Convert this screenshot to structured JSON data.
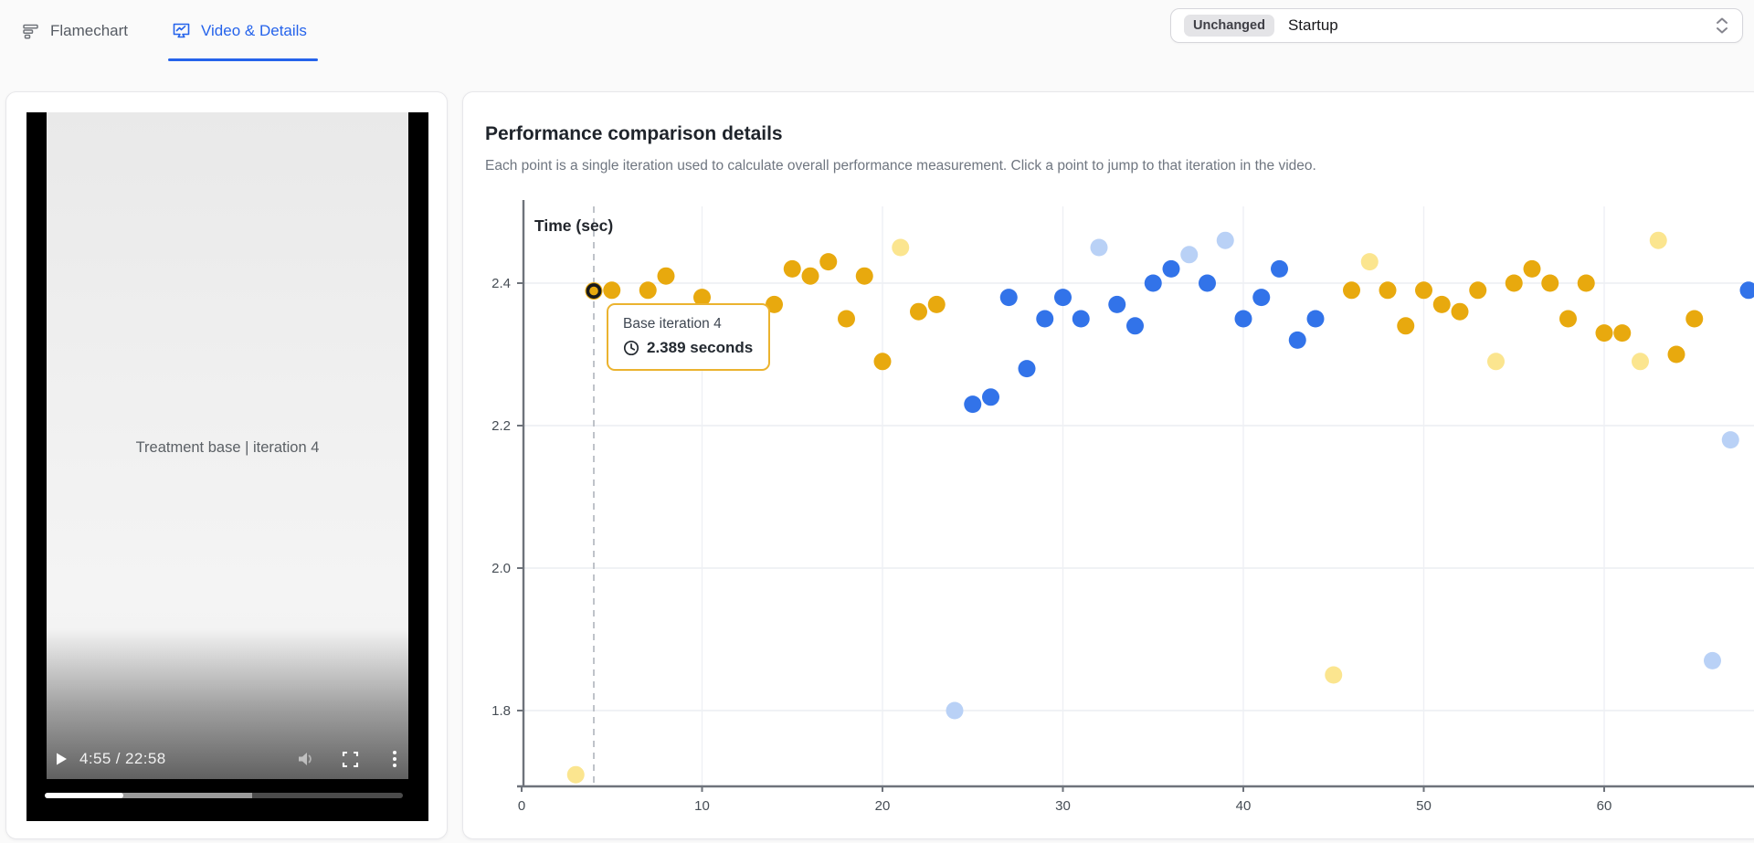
{
  "tabs": [
    {
      "label": "Flamechart",
      "active": false
    },
    {
      "label": "Video & Details",
      "active": true
    }
  ],
  "selector": {
    "badge": "Unchanged",
    "value": "Startup"
  },
  "video": {
    "overlay_title": "Treatment base | iteration 4",
    "time": "4:55 / 22:58",
    "played_percent": 22,
    "buffered_percent": 36
  },
  "panel": {
    "title": "Performance comparison details",
    "subtitle": "Each point is a single iteration used to calculate overall performance measurement. Click a point to jump to that iteration in the video."
  },
  "icons": {
    "flamechart": "stacked-bars",
    "video_details": "chart-board",
    "selector_chevron": "up-down-carets",
    "play": "triangle",
    "volume": "speaker",
    "fullscreen": "corner-brackets",
    "menu": "vertical-dots",
    "clock": "clock-face"
  },
  "colors": {
    "accent_blue": "#2563eb",
    "base_point": "#E8A90E",
    "base_outlier_point": "#FBE58F",
    "treatment_point": "#3273E9",
    "treatment_outlier_point": "#B9D1F6",
    "tooltip_border": "#ebb32f"
  },
  "chart_data": {
    "type": "scatter",
    "ylabel": "Time (sec)",
    "xlabel": "",
    "grid": true,
    "legend": "none",
    "xlim": [
      0,
      68.8
    ],
    "ylim": [
      1.695,
      2.51
    ],
    "x_ticks": [
      0,
      10,
      20,
      30,
      40,
      50,
      60
    ],
    "y_ticks": [
      2.4,
      2.2,
      2.0,
      1.8
    ],
    "selected_point": {
      "series": "base",
      "iteration": 4,
      "seconds": 2.389,
      "label": "Base iteration 4",
      "value_label": "2.389 seconds"
    },
    "series": [
      {
        "name": "base-outlier",
        "color": "#FBE58F",
        "points": [
          [
            3,
            1.71
          ],
          [
            21,
            2.45
          ],
          [
            45,
            1.85
          ],
          [
            47,
            2.43
          ],
          [
            54,
            2.29
          ],
          [
            62,
            2.29
          ],
          [
            63,
            2.46
          ]
        ]
      },
      {
        "name": "treatment-outlier",
        "color": "#B9D1F6",
        "points": [
          [
            24,
            1.8
          ],
          [
            32,
            2.45
          ],
          [
            37,
            2.44
          ],
          [
            39,
            2.46
          ],
          [
            66,
            1.87
          ],
          [
            67,
            2.18
          ]
        ]
      },
      {
        "name": "base",
        "color": "#E8A90E",
        "points": [
          [
            4,
            2.389
          ],
          [
            5,
            2.39
          ],
          [
            7,
            2.39
          ],
          [
            8,
            2.41
          ],
          [
            10,
            2.38
          ],
          [
            14,
            2.37
          ],
          [
            15,
            2.42
          ],
          [
            16,
            2.41
          ],
          [
            17,
            2.43
          ],
          [
            18,
            2.35
          ],
          [
            19,
            2.41
          ],
          [
            20,
            2.29
          ],
          [
            22,
            2.36
          ],
          [
            23,
            2.37
          ],
          [
            46,
            2.39
          ],
          [
            48,
            2.39
          ],
          [
            49,
            2.34
          ],
          [
            50,
            2.39
          ],
          [
            51,
            2.37
          ],
          [
            52,
            2.36
          ],
          [
            53,
            2.39
          ],
          [
            55,
            2.4
          ],
          [
            56,
            2.42
          ],
          [
            57,
            2.4
          ],
          [
            58,
            2.35
          ],
          [
            59,
            2.4
          ],
          [
            60,
            2.33
          ],
          [
            61,
            2.33
          ],
          [
            64,
            2.3
          ],
          [
            65,
            2.35
          ]
        ]
      },
      {
        "name": "treatment",
        "color": "#3273E9",
        "points": [
          [
            25,
            2.23
          ],
          [
            26,
            2.24
          ],
          [
            27,
            2.38
          ],
          [
            28,
            2.28
          ],
          [
            29,
            2.35
          ],
          [
            30,
            2.38
          ],
          [
            31,
            2.35
          ],
          [
            33,
            2.37
          ],
          [
            34,
            2.34
          ],
          [
            35,
            2.4
          ],
          [
            36,
            2.42
          ],
          [
            38,
            2.4
          ],
          [
            40,
            2.35
          ],
          [
            41,
            2.38
          ],
          [
            42,
            2.42
          ],
          [
            43,
            2.32
          ],
          [
            44,
            2.35
          ],
          [
            68,
            2.39
          ]
        ]
      }
    ]
  }
}
